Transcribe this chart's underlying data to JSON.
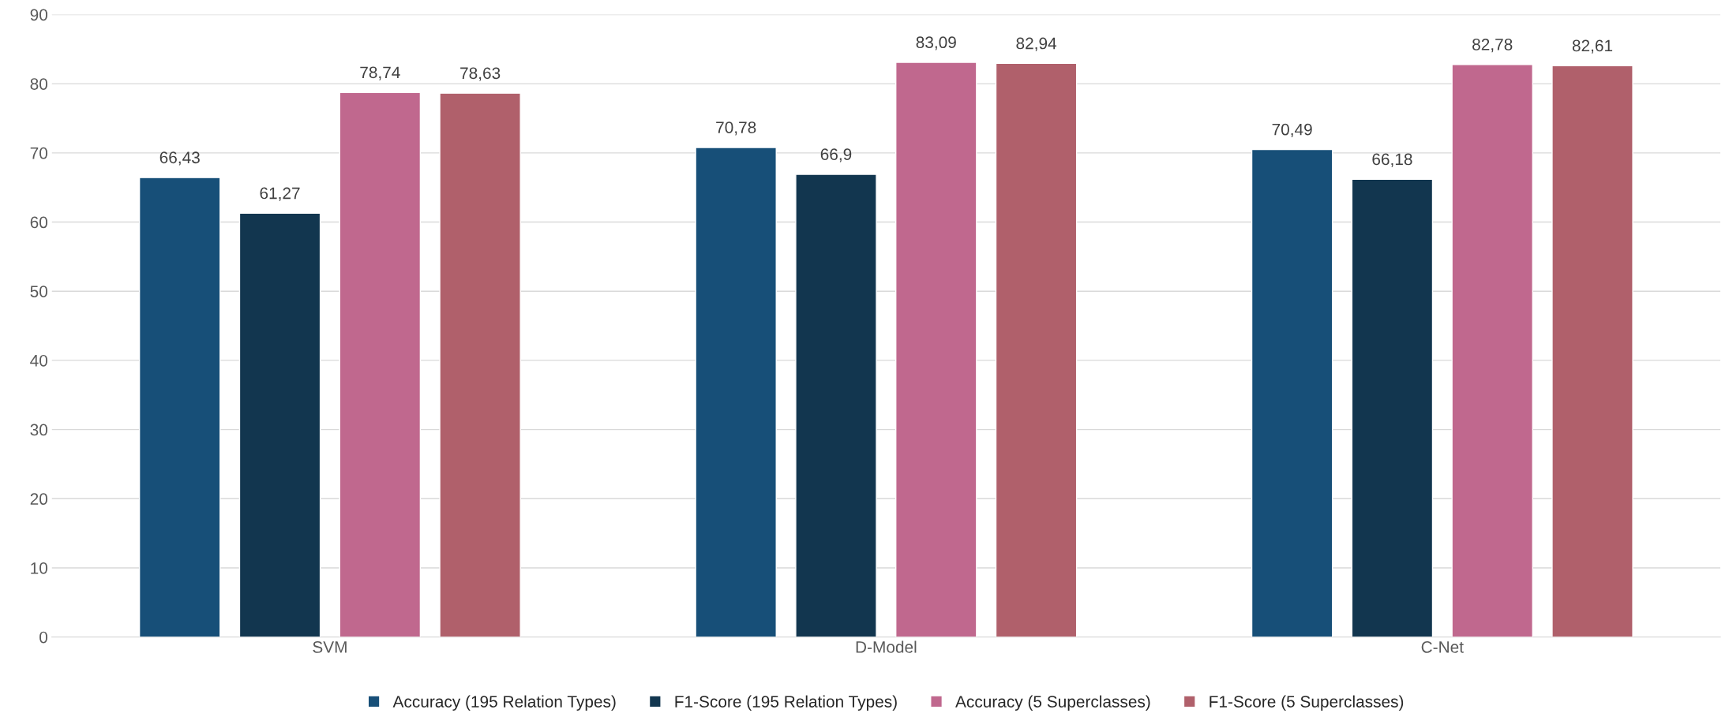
{
  "chart_data": {
    "type": "bar",
    "categories": [
      "SVM",
      "D-Model",
      "C-Net"
    ],
    "series": [
      {
        "name": "Accuracy (195 Relation Types)",
        "color": "#174f78",
        "values": [
          66.43,
          70.78,
          70.49
        ],
        "value_labels": [
          "66,43",
          "70,78",
          "70,49"
        ]
      },
      {
        "name": "F1-Score (195 Relation Types)",
        "color": "#12364f",
        "values": [
          61.27,
          66.9,
          66.18
        ],
        "value_labels": [
          "61,27",
          "66,9",
          "66,18"
        ]
      },
      {
        "name": "Accuracy (5 Superclasses)",
        "color": "#c0688e",
        "values": [
          78.74,
          83.09,
          82.78
        ],
        "value_labels": [
          "78,74",
          "83,09",
          "82,78"
        ]
      },
      {
        "name": "F1-Score (5 Superclasses)",
        "color": "#b0606b",
        "values": [
          78.63,
          82.94,
          82.61
        ],
        "value_labels": [
          "78,63",
          "82,94",
          "82,61"
        ]
      }
    ],
    "ylim": [
      0,
      90
    ],
    "yticks": [
      0,
      10,
      20,
      30,
      40,
      50,
      60,
      70,
      80,
      90
    ],
    "grid": "y",
    "legend": "bottom"
  }
}
